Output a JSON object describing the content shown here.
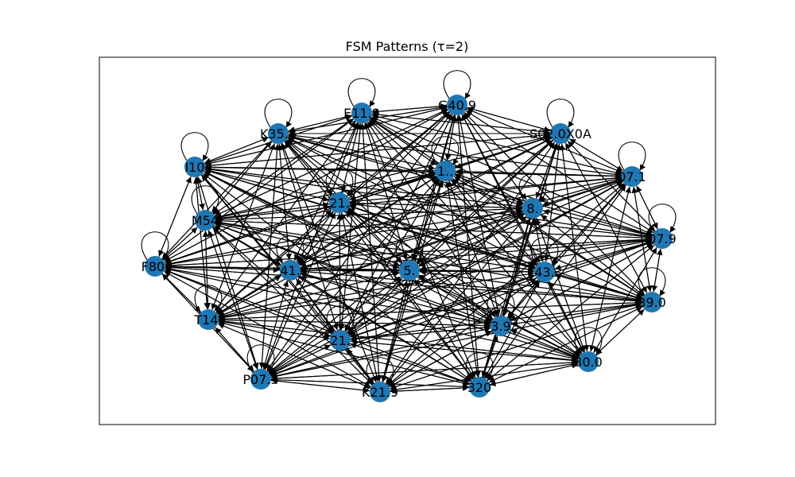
{
  "figure": {
    "title": "FSM Patterns (τ=2)"
  },
  "colors": {
    "node": "#1f77b4",
    "edge": "#000000",
    "background": "#ffffff"
  },
  "graph": {
    "directed": true,
    "density": "complete",
    "self_loops": true,
    "nodes": [
      {
        "id": "n1",
        "label": "E11.9"
      },
      {
        "id": "n2",
        "label": "G40.9"
      },
      {
        "id": "n3",
        "label": "S02.0X0A"
      },
      {
        "id": "n4",
        "label": "K35.8"
      },
      {
        "id": "n5",
        "label": "I10"
      },
      {
        "id": "n6",
        "label": "07.1"
      },
      {
        "id": "n7",
        "label": "1.."
      },
      {
        "id": "n8",
        "label": "21."
      },
      {
        "id": "n9",
        "label": "8."
      },
      {
        "id": "n10",
        "label": "M54"
      },
      {
        "id": "n11",
        "label": "07.9"
      },
      {
        "id": "n12",
        "label": "F80."
      },
      {
        "id": "n13",
        "label": "41."
      },
      {
        "id": "n14",
        "label": "5."
      },
      {
        "id": "n15",
        "label": "43."
      },
      {
        "id": "n16",
        "label": "39.0"
      },
      {
        "id": "n17",
        "label": "T14."
      },
      {
        "id": "n18",
        "label": "3.9"
      },
      {
        "id": "n19",
        "label": "21."
      },
      {
        "id": "n20",
        "label": "30.0"
      },
      {
        "id": "n21",
        "label": "P07.3"
      },
      {
        "id": "n22",
        "label": "320"
      },
      {
        "id": "n23",
        "label": "K21.9"
      }
    ]
  }
}
